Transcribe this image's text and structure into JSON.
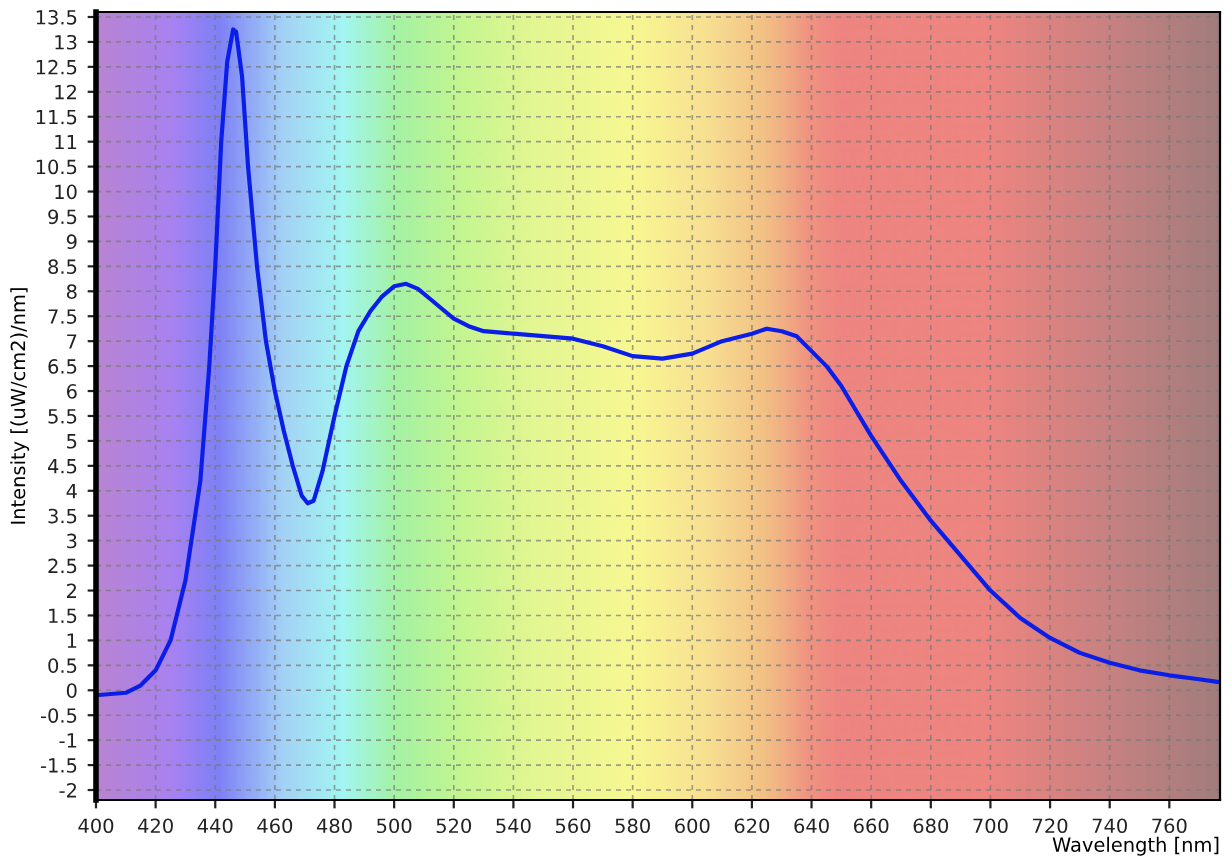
{
  "chart_data": {
    "type": "line",
    "xlabel": "Wavelength [nm]",
    "ylabel": "Intensity [(uW/cm2)/nm]",
    "x": [
      400,
      410,
      415,
      420,
      425,
      430,
      435,
      438,
      440,
      442,
      444,
      446,
      447,
      449,
      451,
      454,
      457,
      460,
      463,
      466,
      469,
      471,
      473,
      476,
      480,
      484,
      488,
      492,
      496,
      500,
      504,
      508,
      512,
      516,
      520,
      525,
      530,
      540,
      550,
      560,
      570,
      580,
      590,
      600,
      610,
      620,
      625,
      630,
      635,
      640,
      645,
      650,
      655,
      660,
      670,
      680,
      690,
      700,
      710,
      720,
      730,
      740,
      750,
      760,
      770,
      776
    ],
    "series": [
      {
        "color": "#0a1ee8",
        "values": [
          -0.1,
          -0.05,
          0.1,
          0.4,
          1.0,
          2.2,
          4.2,
          6.5,
          8.5,
          11,
          12.6,
          13.25,
          13.2,
          12.3,
          10.5,
          8.5,
          7.0,
          6.0,
          5.2,
          4.5,
          3.9,
          3.75,
          3.8,
          4.4,
          5.5,
          6.5,
          7.2,
          7.6,
          7.9,
          8.1,
          8.15,
          8.05,
          7.85,
          7.65,
          7.45,
          7.3,
          7.2,
          7.15,
          7.1,
          7.05,
          6.9,
          6.7,
          6.65,
          6.75,
          7.0,
          7.15,
          7.25,
          7.2,
          7.1,
          6.8,
          6.5,
          6.1,
          5.6,
          5.1,
          4.2,
          3.4,
          2.7,
          2.0,
          1.45,
          1.05,
          0.75,
          0.55,
          0.4,
          0.3,
          0.22,
          0.17
        ]
      }
    ],
    "xlim": [
      400,
      777
    ],
    "xticks": [
      400,
      420,
      440,
      460,
      480,
      500,
      520,
      540,
      560,
      580,
      600,
      620,
      640,
      660,
      680,
      700,
      720,
      740,
      760
    ],
    "ylim": [
      -2.2,
      13.6
    ],
    "yticks": [
      -2,
      -1.5,
      -1,
      -0.5,
      0,
      0.5,
      1,
      1.5,
      2,
      2.5,
      3,
      3.5,
      4,
      4.5,
      5,
      5.5,
      6,
      6.5,
      7,
      7.5,
      8,
      8.5,
      9,
      9.5,
      10,
      10.5,
      11,
      11.5,
      12,
      12.5,
      13,
      13.5
    ],
    "grid": true,
    "line_style": "solid",
    "marker": "none"
  }
}
